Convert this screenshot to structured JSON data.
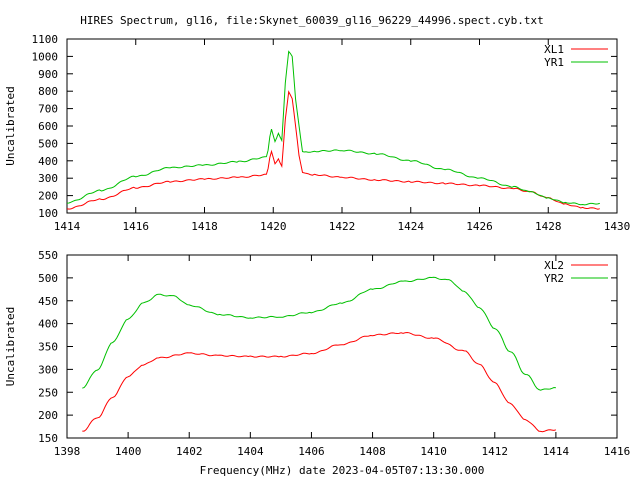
{
  "title": "HIRES Spectrum, gl16, file:Skynet_60039_gl16_96229_44996.spect.cyb.txt",
  "chart_data": [
    {
      "type": "line",
      "ylabel": "Uncalibrated",
      "xlim": [
        1414,
        1430
      ],
      "ylim": [
        100,
        1100
      ],
      "xticks": [
        1414,
        1416,
        1418,
        1420,
        1422,
        1424,
        1426,
        1428,
        1430
      ],
      "yticks": [
        100,
        200,
        300,
        400,
        500,
        600,
        700,
        800,
        900,
        1000,
        1100
      ],
      "legend": "top-right",
      "series": [
        {
          "name": "XL1",
          "color": "#ff0000",
          "x": [
            1414,
            1415,
            1416,
            1417,
            1418,
            1419,
            1419.8,
            1419.95,
            1420.05,
            1420.15,
            1420.25,
            1420.35,
            1420.45,
            1420.55,
            1420.65,
            1420.75,
            1420.85,
            1420.95,
            1421.2,
            1422,
            1423,
            1424,
            1425,
            1426,
            1427,
            1427.5,
            1428,
            1428.5,
            1429,
            1429.5
          ],
          "y": [
            125,
            180,
            245,
            280,
            295,
            305,
            320,
            450,
            380,
            410,
            370,
            640,
            800,
            760,
            600,
            430,
            330,
            325,
            320,
            305,
            290,
            280,
            270,
            258,
            240,
            220,
            185,
            150,
            130,
            125
          ]
        },
        {
          "name": "YR1",
          "color": "#00c000",
          "x": [
            1414,
            1415,
            1416,
            1417,
            1418,
            1419,
            1419.8,
            1419.95,
            1420.05,
            1420.15,
            1420.25,
            1420.35,
            1420.45,
            1420.55,
            1420.65,
            1420.75,
            1420.85,
            1420.95,
            1421.2,
            1422,
            1423,
            1424,
            1425,
            1426,
            1427,
            1427.5,
            1428,
            1428.5,
            1429,
            1429.5
          ],
          "y": [
            160,
            230,
            310,
            360,
            375,
            395,
            420,
            580,
            510,
            560,
            520,
            850,
            1030,
            1000,
            750,
            600,
            450,
            450,
            455,
            460,
            440,
            400,
            350,
            300,
            250,
            220,
            185,
            160,
            150,
            155
          ]
        }
      ]
    },
    {
      "type": "line",
      "ylabel": "Uncalibrated",
      "xlabel": "Frequency(MHz) date 2023-04-05T07:13:30.000",
      "xlim": [
        1398,
        1416
      ],
      "ylim": [
        150,
        550
      ],
      "xticks": [
        1398,
        1400,
        1402,
        1404,
        1406,
        1408,
        1410,
        1412,
        1414,
        1416
      ],
      "yticks": [
        150,
        200,
        250,
        300,
        350,
        400,
        450,
        500,
        550
      ],
      "legend": "top-right",
      "series": [
        {
          "name": "XL2",
          "color": "#ff0000",
          "x": [
            1398.5,
            1399,
            1399.5,
            1400,
            1400.5,
            1401,
            1402,
            1403,
            1404,
            1405,
            1406,
            1407,
            1408,
            1409,
            1410,
            1411,
            1411.5,
            1412,
            1412.5,
            1413,
            1413.5,
            1414
          ],
          "y": [
            165,
            195,
            240,
            285,
            310,
            325,
            335,
            330,
            328,
            328,
            335,
            355,
            375,
            380,
            368,
            340,
            310,
            270,
            225,
            190,
            165,
            168
          ]
        },
        {
          "name": "YR2",
          "color": "#00c000",
          "x": [
            1398.5,
            1399,
            1399.5,
            1400,
            1400.5,
            1401,
            1401.5,
            1402,
            1403,
            1404,
            1405,
            1406,
            1407,
            1408,
            1409,
            1410,
            1410.5,
            1411,
            1411.5,
            1412,
            1412.5,
            1413,
            1413.5,
            1414
          ],
          "y": [
            260,
            300,
            360,
            410,
            445,
            463,
            460,
            440,
            420,
            413,
            415,
            425,
            445,
            475,
            492,
            500,
            495,
            470,
            435,
            390,
            340,
            290,
            255,
            260
          ]
        }
      ]
    }
  ]
}
